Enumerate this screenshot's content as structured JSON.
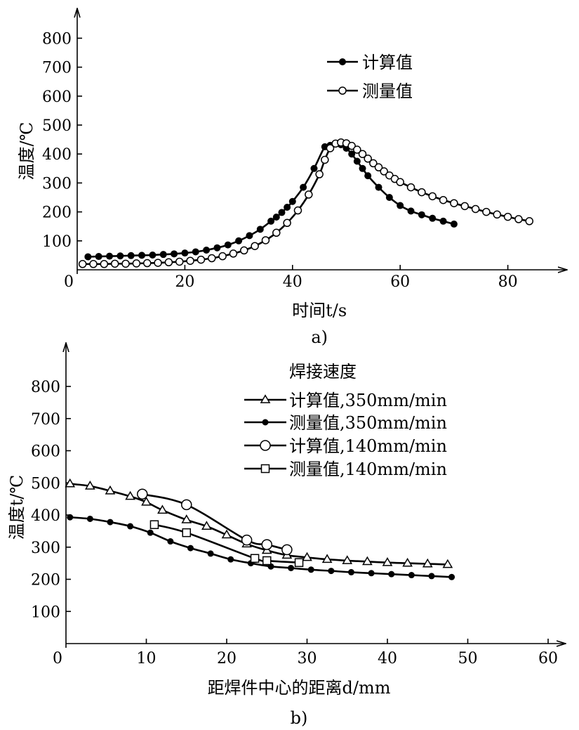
{
  "chart_data": [
    {
      "type": "line",
      "panel_label": "a)",
      "xlabel": "时间t/s",
      "ylabel": "温度/℃",
      "xlim": [
        0,
        90
      ],
      "ylim": [
        0,
        850
      ],
      "x_origin_label": "0",
      "xticks": [
        20,
        40,
        60,
        80
      ],
      "yticks": [
        100,
        200,
        300,
        400,
        500,
        600,
        700,
        800
      ],
      "grid": false,
      "legend_position": "top-right",
      "series": [
        {
          "name": "计算值",
          "marker": "filled-circle",
          "x": [
            2,
            4,
            6,
            8,
            10,
            12,
            14,
            16,
            18,
            20,
            22,
            24,
            26,
            28,
            30,
            32,
            34,
            36,
            37,
            38,
            39,
            40,
            42,
            44,
            46,
            47,
            48,
            49,
            50,
            51,
            52,
            53,
            54,
            56,
            58,
            60,
            62,
            64,
            66,
            68,
            70
          ],
          "y": [
            45,
            46,
            47,
            48,
            49,
            50,
            51,
            53,
            55,
            58,
            62,
            68,
            76,
            86,
            100,
            118,
            140,
            168,
            182,
            198,
            216,
            236,
            285,
            350,
            425,
            430,
            435,
            432,
            420,
            400,
            375,
            350,
            325,
            285,
            250,
            222,
            203,
            190,
            178,
            168,
            158
          ]
        },
        {
          "name": "测量值",
          "marker": "open-circle",
          "x": [
            1,
            3,
            5,
            7,
            9,
            11,
            13,
            15,
            17,
            19,
            21,
            23,
            25,
            27,
            29,
            31,
            33,
            35,
            37,
            39,
            41,
            43,
            45,
            46,
            47,
            48,
            49,
            50,
            51,
            52,
            53,
            54,
            55,
            56,
            57,
            58,
            59,
            60,
            62,
            64,
            66,
            68,
            70,
            72,
            74,
            76,
            78,
            80,
            82,
            84
          ],
          "y": [
            20,
            20,
            20,
            21,
            21,
            22,
            23,
            24,
            26,
            28,
            31,
            35,
            40,
            47,
            56,
            67,
            82,
            102,
            128,
            162,
            205,
            260,
            330,
            380,
            420,
            436,
            440,
            437,
            428,
            415,
            400,
            384,
            368,
            354,
            340,
            326,
            314,
            303,
            285,
            268,
            254,
            241,
            230,
            220,
            210,
            200,
            191,
            183,
            175,
            168
          ]
        }
      ]
    },
    {
      "type": "line",
      "panel_label": "b)",
      "xlabel": "距焊件中心的距离d/mm",
      "ylabel": "温度t/℃",
      "legend_title": "焊接速度",
      "xlim": [
        0,
        65
      ],
      "ylim": [
        0,
        900
      ],
      "x_origin_label": "0",
      "xticks": [
        10,
        20,
        30,
        40,
        50,
        60
      ],
      "yticks": [
        100,
        200,
        300,
        400,
        500,
        600,
        700,
        800
      ],
      "grid": false,
      "legend_position": "top-right",
      "series": [
        {
          "name": "计算值,350mm/min",
          "marker": "open-triangle",
          "x": [
            0.5,
            3,
            5.5,
            8,
            10,
            12,
            15,
            17.5,
            20,
            22.5,
            25,
            27.5,
            30,
            32.5,
            35,
            37.5,
            40,
            42.5,
            45,
            47.5
          ],
          "y": [
            497,
            490,
            475,
            458,
            440,
            415,
            385,
            365,
            338,
            310,
            290,
            275,
            268,
            262,
            258,
            255,
            252,
            250,
            248,
            246
          ]
        },
        {
          "name": "测量值,350mm/min",
          "marker": "filled-circle",
          "x": [
            0.5,
            3,
            5.5,
            8,
            10.5,
            13,
            15.5,
            18,
            20.5,
            23,
            25.5,
            28,
            30.5,
            33,
            35.5,
            38,
            40.5,
            43,
            45.5,
            48
          ],
          "y": [
            393,
            388,
            378,
            365,
            345,
            318,
            297,
            280,
            262,
            250,
            240,
            235,
            230,
            226,
            222,
            219,
            216,
            213,
            210,
            207
          ]
        },
        {
          "name": "计算值,140mm/min",
          "marker": "open-circle",
          "x": [
            9.5,
            15,
            22.5,
            25,
            27.5
          ],
          "y": [
            465,
            432,
            322,
            308,
            292
          ]
        },
        {
          "name": "测量值,140mm/min",
          "marker": "open-square",
          "x": [
            11,
            15,
            23.5,
            25,
            29
          ],
          "y": [
            370,
            345,
            265,
            258,
            252
          ]
        }
      ]
    }
  ]
}
